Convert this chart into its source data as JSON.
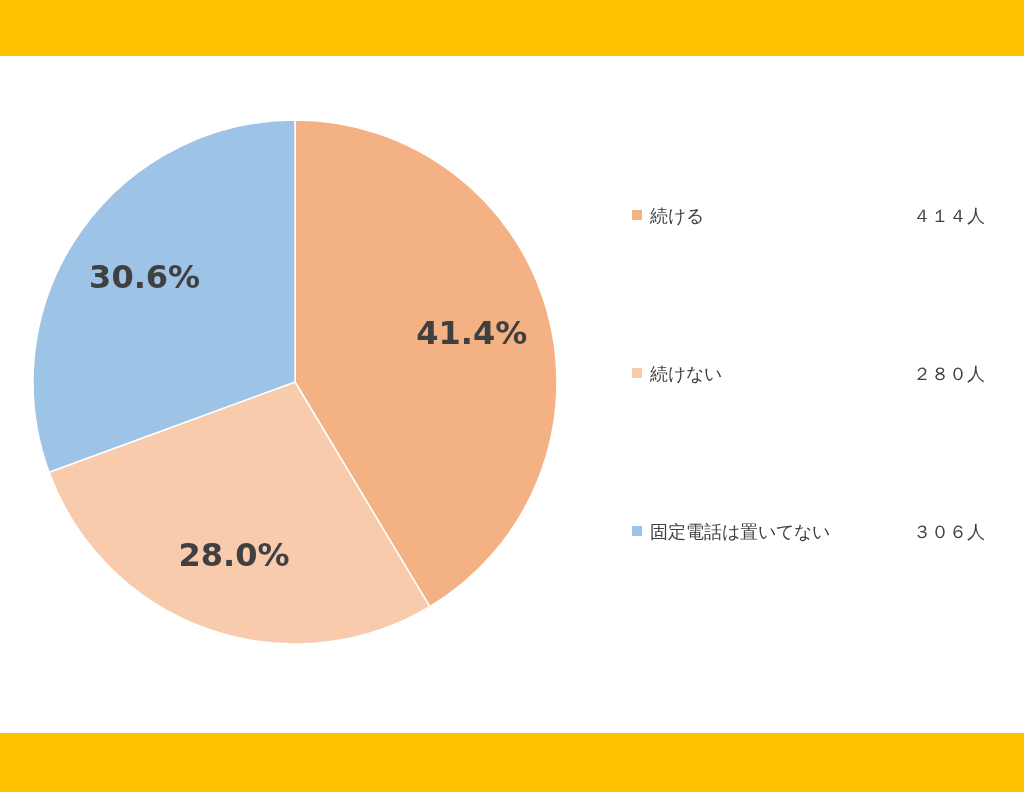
{
  "chart_data": {
    "type": "pie",
    "categories": [
      "続ける",
      "続けない",
      "固定電話は置いてない"
    ],
    "values": [
      41.4,
      28.0,
      30.6
    ],
    "colors": [
      "#f4b183",
      "#f8cbad",
      "#9dc3e6"
    ],
    "value_labels": [
      "41.4%",
      "28.0%",
      "30.6%"
    ],
    "legend": "right",
    "annotations": [
      "４１４人",
      "２８０人",
      "３０６人"
    ]
  }
}
